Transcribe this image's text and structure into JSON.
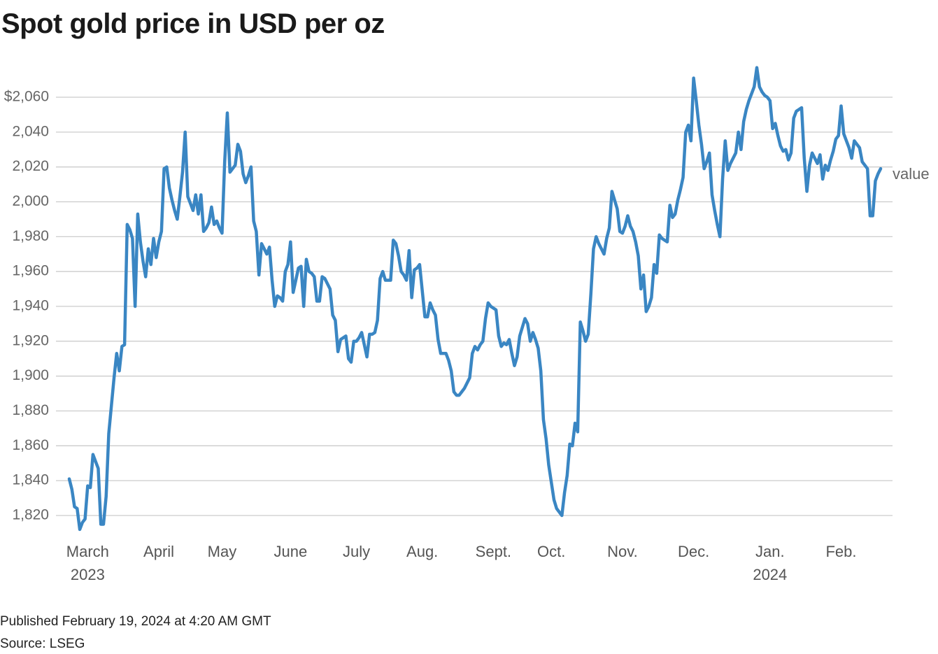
{
  "chart_data": {
    "type": "line",
    "title": "Spot gold price in USD per oz",
    "caption": "Published February 19, 2024 at 4:20 AM GMT",
    "source": "Source: LSEG",
    "grid": true,
    "ylim": [
      1810,
      2080
    ],
    "yticks": [
      {
        "value": 1820,
        "label": "1,820"
      },
      {
        "value": 1840,
        "label": "1,840"
      },
      {
        "value": 1860,
        "label": "1,860"
      },
      {
        "value": 1880,
        "label": "1,880"
      },
      {
        "value": 1900,
        "label": "1,900"
      },
      {
        "value": 1920,
        "label": "1,920"
      },
      {
        "value": 1940,
        "label": "1,940"
      },
      {
        "value": 1960,
        "label": "1,960"
      },
      {
        "value": 1980,
        "label": "1,980"
      },
      {
        "value": 2000,
        "label": "2,000"
      },
      {
        "value": 2020,
        "label": "2,020"
      },
      {
        "value": 2040,
        "label": "2,040"
      },
      {
        "value": 2060,
        "label": "$2,060"
      }
    ],
    "categories": [
      null,
      null,
      null,
      null,
      null,
      null,
      null,
      "March\n2023",
      null,
      null,
      null,
      null,
      null,
      null,
      null,
      null,
      null,
      null,
      null,
      null,
      null,
      null,
      null,
      null,
      null,
      null,
      null,
      null,
      null,
      null,
      null,
      null,
      null,
      null,
      "April",
      null,
      null,
      null,
      null,
      null,
      null,
      null,
      null,
      null,
      null,
      null,
      null,
      null,
      null,
      null,
      null,
      null,
      null,
      null,
      null,
      null,
      null,
      null,
      "May",
      null,
      null,
      null,
      null,
      null,
      null,
      null,
      null,
      null,
      null,
      null,
      null,
      null,
      null,
      null,
      null,
      null,
      null,
      null,
      null,
      null,
      null,
      null,
      null,
      null,
      "June",
      null,
      null,
      null,
      null,
      null,
      null,
      null,
      null,
      null,
      null,
      null,
      null,
      null,
      null,
      null,
      null,
      null,
      null,
      null,
      null,
      null,
      null,
      null,
      null,
      "July",
      null,
      null,
      null,
      null,
      null,
      null,
      null,
      null,
      null,
      null,
      null,
      null,
      null,
      null,
      null,
      null,
      null,
      null,
      null,
      null,
      null,
      null,
      null,
      null,
      "Aug.",
      null,
      null,
      null,
      null,
      null,
      null,
      null,
      null,
      null,
      null,
      null,
      null,
      null,
      null,
      null,
      null,
      null,
      null,
      null,
      null,
      null,
      null,
      null,
      null,
      null,
      null,
      "Sept.",
      null,
      null,
      null,
      null,
      null,
      null,
      null,
      null,
      null,
      null,
      null,
      null,
      null,
      null,
      null,
      null,
      null,
      null,
      null,
      null,
      null,
      "Oct.",
      null,
      null,
      null,
      null,
      null,
      null,
      null,
      null,
      null,
      null,
      null,
      null,
      null,
      null,
      null,
      null,
      null,
      null,
      null,
      null,
      null,
      null,
      null,
      null,
      null,
      null,
      "Nov.",
      null,
      null,
      null,
      null,
      null,
      null,
      null,
      null,
      null,
      null,
      null,
      null,
      null,
      null,
      null,
      null,
      null,
      null,
      null,
      null,
      null,
      null,
      null,
      null,
      null,
      null,
      "Dec.",
      null,
      null,
      null,
      null,
      null,
      null,
      null,
      null,
      null,
      null,
      null,
      null,
      null,
      null,
      null,
      null,
      null,
      null,
      null,
      null,
      null,
      null,
      null,
      null,
      null,
      null,
      null,
      null,
      "Jan.\n2024",
      null,
      null,
      null,
      null,
      null,
      null,
      null,
      null,
      null,
      null,
      null,
      null,
      null,
      null,
      null,
      null,
      null,
      null,
      null,
      null,
      null,
      null,
      null,
      null,
      null,
      null,
      "Feb.",
      null,
      null,
      null,
      null,
      null,
      null,
      null,
      null,
      null,
      null,
      null,
      null,
      null,
      null,
      null
    ],
    "series": [
      {
        "name": "value",
        "color": "#3a86c3",
        "values": [
          1841,
          1835,
          1825,
          1824,
          1812,
          1816,
          1818,
          1837,
          1836,
          1855,
          1851,
          1847,
          1815,
          1815,
          1831,
          1867,
          1883,
          1899,
          1913,
          1903,
          1917,
          1918,
          1987,
          1984,
          1979,
          1940,
          1993,
          1977,
          1966,
          1957,
          1973,
          1964,
          1979,
          1968,
          1977,
          1983,
          2019,
          2020,
          2008,
          2001,
          1995,
          1990,
          2003,
          2017,
          2040,
          2003,
          1999,
          1995,
          2004,
          1993,
          2004,
          1983,
          1985,
          1988,
          1997,
          1987,
          1989,
          1985,
          1982,
          2023,
          2051,
          2017,
          2019,
          2021,
          2033,
          2029,
          2016,
          2011,
          2015,
          2020,
          1989,
          1983,
          1958,
          1976,
          1973,
          1970,
          1974,
          1955,
          1940,
          1946,
          1945,
          1943,
          1960,
          1964,
          1977,
          1948,
          1955,
          1962,
          1963,
          1940,
          1967,
          1960,
          1959,
          1957,
          1943,
          1943,
          1957,
          1956,
          1953,
          1950,
          1935,
          1932,
          1914,
          1921,
          1922,
          1923,
          1910,
          1908,
          1920,
          1920,
          1922,
          1925,
          1918,
          1911,
          1924,
          1924,
          1925,
          1932,
          1956,
          1960,
          1955,
          1955,
          1955,
          1978,
          1976,
          1969,
          1960,
          1958,
          1955,
          1972,
          1945,
          1961,
          1962,
          1964,
          1949,
          1934,
          1934,
          1942,
          1938,
          1935,
          1921,
          1913,
          1913,
          1913,
          1909,
          1903,
          1891,
          1889,
          1889,
          1891,
          1893,
          1896,
          1899,
          1913,
          1917,
          1915,
          1918,
          1920,
          1933,
          1942,
          1940,
          1939,
          1938,
          1923,
          1917,
          1919,
          1918,
          1921,
          1913,
          1906,
          1911,
          1923,
          1928,
          1933,
          1930,
          1920,
          1925,
          1921,
          1916,
          1903,
          1875,
          1864,
          1849,
          1839,
          1829,
          1824,
          1822,
          1820,
          1833,
          1843,
          1861,
          1860,
          1873,
          1868,
          1931,
          1926,
          1920,
          1924,
          1947,
          1973,
          1980,
          1976,
          1973,
          1970,
          1979,
          1985,
          2006,
          2001,
          1996,
          1983,
          1982,
          1986,
          1992,
          1986,
          1983,
          1977,
          1969,
          1950,
          1958,
          1937,
          1940,
          1945,
          1964,
          1959,
          1981,
          1979,
          1978,
          1977,
          1998,
          1991,
          1993,
          2001,
          2007,
          2014,
          2040,
          2044,
          2035,
          2071,
          2058,
          2044,
          2033,
          2019,
          2023,
          2028,
          2004,
          1995,
          1987,
          1980,
          2013,
          2035,
          2018,
          2022,
          2025,
          2028,
          2040,
          2030,
          2046,
          2053,
          2058,
          2062,
          2066,
          2077,
          2066,
          2063,
          2061,
          2060,
          2058,
          2042,
          2045,
          2038,
          2032,
          2029,
          2030,
          2024,
          2028,
          2048,
          2052,
          2053,
          2054,
          2025,
          2006,
          2021,
          2028,
          2025,
          2022,
          2027,
          2013,
          2021,
          2018,
          2024,
          2029,
          2036,
          2038,
          2055,
          2039,
          2035,
          2031,
          2025,
          2035,
          2033,
          2031,
          2023,
          2021,
          2019,
          1992,
          1992,
          2012,
          2016,
          2019
        ]
      }
    ]
  }
}
